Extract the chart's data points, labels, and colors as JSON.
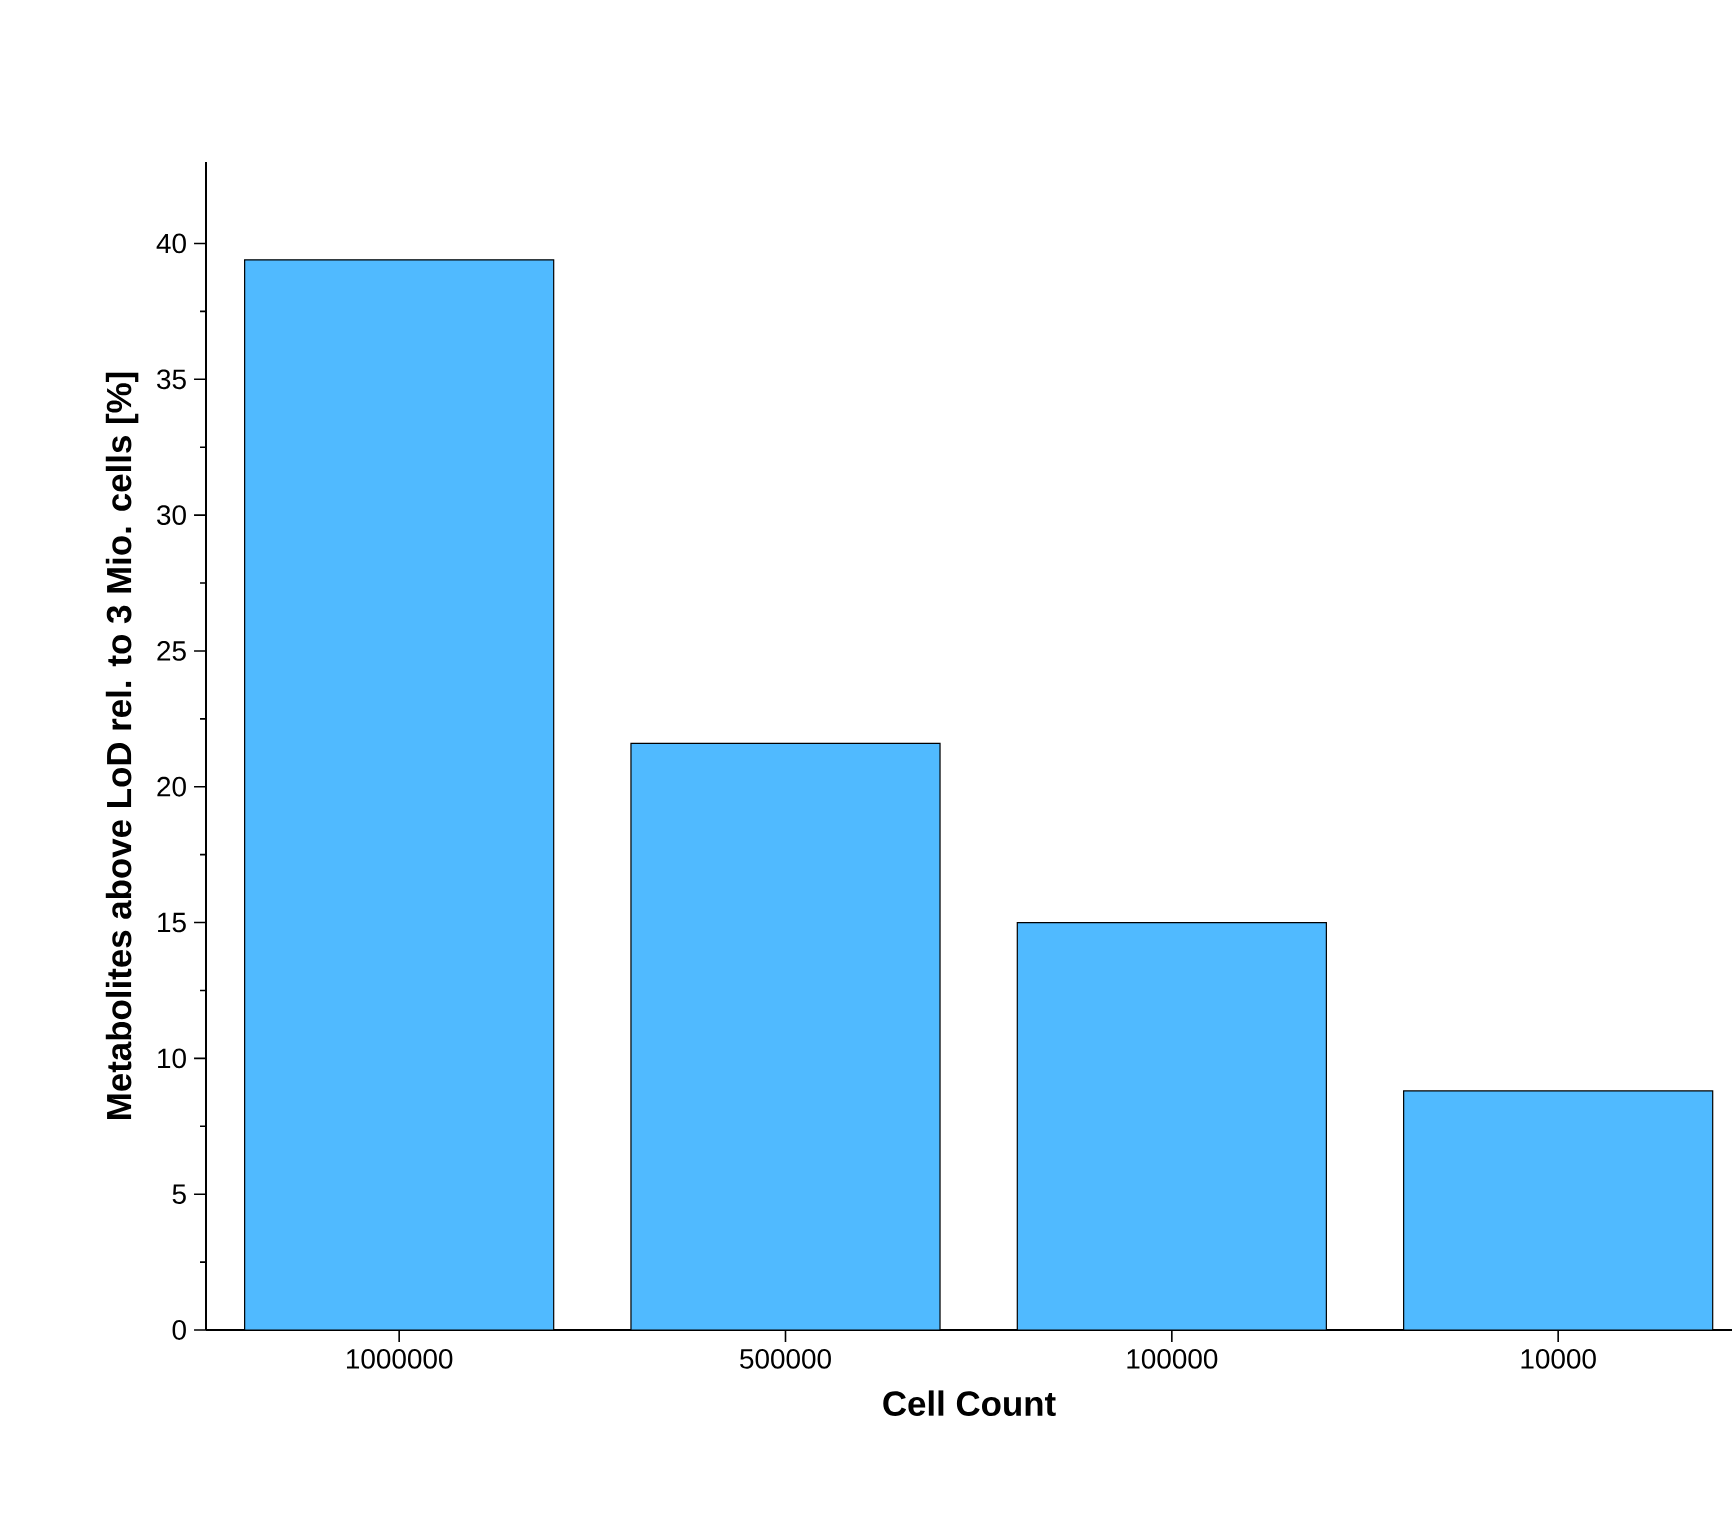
{
  "chart_data": {
    "type": "bar",
    "xlabel": "Cell Count",
    "ylabel": "Metabolites above LoD rel. to 3 Mio. cells [%]",
    "categories": [
      "1000000",
      "500000",
      "100000",
      "10000"
    ],
    "values": [
      39.4,
      21.6,
      15.0,
      8.8
    ],
    "color": "#50baff",
    "ylim": [
      0,
      43
    ],
    "yticks": [
      0,
      5,
      10,
      15,
      20,
      25,
      30,
      35,
      40
    ],
    "grid": false
  }
}
